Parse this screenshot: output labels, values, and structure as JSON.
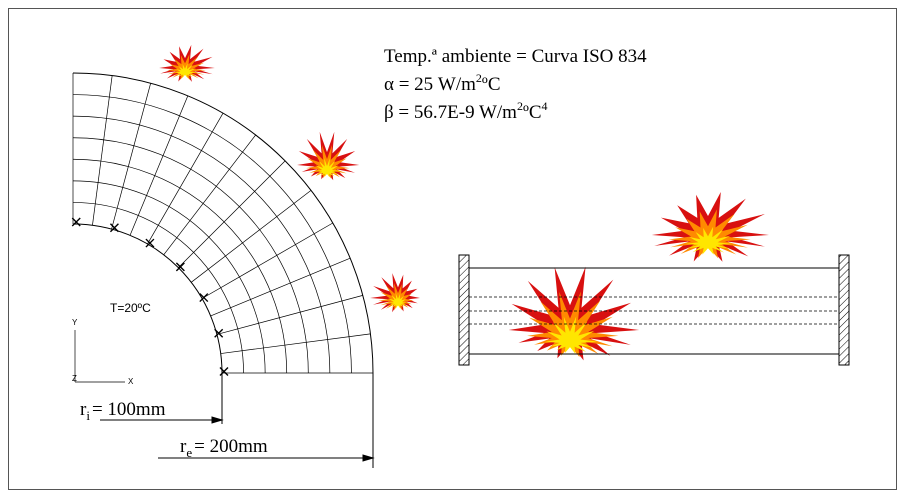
{
  "ambient": "Temp.ª ambiente = Curva ISO 834",
  "alpha": {
    "prefix": "α = 25 W/m",
    "sup": "2",
    "suffix": "ºC"
  },
  "beta": {
    "prefix": "β = 56.7E-9 W/m",
    "sup": "2",
    "mid": "ºC",
    "sup2": "4"
  },
  "inner_temperature": "T=20ºC",
  "axes": {
    "y": "Y",
    "z": "Z",
    "x": "X"
  },
  "ri": {
    "symbol": "r",
    "sub": "i",
    "value": "= 100mm"
  },
  "re": {
    "symbol": "r",
    "sub": "e",
    "value": "= 200mm"
  }
}
